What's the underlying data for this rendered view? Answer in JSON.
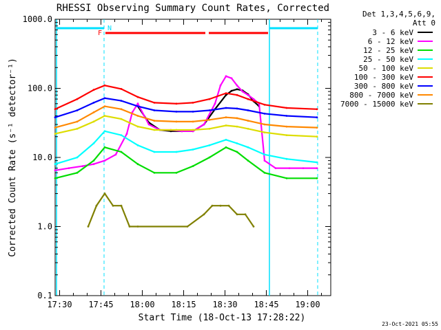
{
  "chart_data": {
    "type": "line",
    "title": "RHESSI Observing Summary Count Rates, Corrected",
    "xlabel": "Start Time (18-Oct-13 17:28:22)",
    "ylabel": "Corrected Count Rate (s⁻¹ detector⁻¹)",
    "y_scale": "log",
    "ylim": [
      0.1,
      1000
    ],
    "y_ticks": [
      "0.1",
      "1.0",
      "10.0",
      "100.0",
      "1000.0"
    ],
    "x_ticks": [
      "17:30",
      "17:45",
      "18:00",
      "18:15",
      "18:30",
      "18:45",
      "19:00"
    ],
    "x_tick_minutes": [
      1.63,
      16.63,
      31.63,
      46.63,
      61.63,
      76.63,
      91.63
    ],
    "xlim_minutes": [
      0,
      100
    ],
    "legend_header": [
      "Det 1,3,4,5,6,9,",
      "Att 0"
    ],
    "legend_position": "right",
    "annotations": {
      "fast_rate_marker": "F",
      "night_marker": "N",
      "timestamp": "23-Oct-2021 05:55"
    },
    "series": [
      {
        "name": "3 - 6 keV",
        "color": "#000000",
        "x": [
          30,
          34,
          38,
          42,
          46,
          50,
          54,
          58,
          62,
          64,
          66,
          68,
          70,
          72,
          74
        ],
        "y": [
          55,
          32,
          25,
          24,
          24,
          24,
          30,
          50,
          80,
          92,
          97,
          93,
          82,
          65,
          55
        ]
      },
      {
        "name": "6 - 12 keV",
        "color": "#ff00ff",
        "x": [
          0,
          5,
          10,
          14,
          18,
          22,
          26,
          28,
          30,
          34,
          38,
          42,
          46,
          50,
          54,
          58,
          60,
          62,
          64,
          66,
          68,
          70,
          72,
          74,
          76,
          80,
          85,
          90,
          95
        ],
        "y": [
          6.5,
          7,
          7.5,
          8,
          9,
          11,
          22,
          45,
          60,
          30,
          25,
          25,
          24,
          24,
          30,
          60,
          110,
          150,
          140,
          110,
          90,
          80,
          70,
          60,
          9,
          7,
          7,
          7,
          7
        ]
      },
      {
        "name": "12 - 25 keV",
        "color": "#00dd00",
        "x": [
          0,
          8,
          14,
          18,
          24,
          30,
          36,
          44,
          50,
          56,
          62,
          66,
          70,
          76,
          84,
          95
        ],
        "y": [
          5,
          6,
          9,
          14,
          12,
          8,
          6,
          6,
          7.5,
          10,
          14,
          12,
          9,
          6,
          5,
          5
        ]
      },
      {
        "name": "25 - 50 keV",
        "color": "#00ffff",
        "x": [
          0,
          8,
          14,
          18,
          24,
          30,
          36,
          44,
          50,
          56,
          62,
          66,
          70,
          76,
          84,
          95
        ],
        "y": [
          8,
          10,
          16,
          24,
          21,
          15,
          12,
          12,
          13,
          15,
          18,
          16,
          14,
          11,
          9.5,
          8.5
        ]
      },
      {
        "name": "50 - 100 keV",
        "color": "#dddd00",
        "x": [
          0,
          8,
          14,
          18,
          24,
          30,
          36,
          44,
          50,
          56,
          62,
          66,
          70,
          76,
          84,
          95
        ],
        "y": [
          22,
          26,
          33,
          40,
          36,
          28,
          25,
          25,
          25,
          26,
          29,
          28,
          26,
          23,
          21,
          20
        ]
      },
      {
        "name": "100 - 300 keV",
        "color": "#ff0000",
        "x": [
          0,
          8,
          14,
          18,
          24,
          30,
          36,
          44,
          50,
          56,
          62,
          66,
          70,
          76,
          84,
          95
        ],
        "y": [
          50,
          70,
          95,
          110,
          98,
          75,
          62,
          60,
          62,
          70,
          85,
          80,
          70,
          58,
          52,
          50
        ]
      },
      {
        "name": "300 - 800 keV",
        "color": "#0000ff",
        "x": [
          0,
          8,
          14,
          18,
          24,
          30,
          36,
          44,
          50,
          56,
          62,
          66,
          70,
          76,
          84,
          95
        ],
        "y": [
          38,
          48,
          62,
          72,
          66,
          55,
          48,
          46,
          46,
          48,
          52,
          51,
          48,
          43,
          40,
          38
        ]
      },
      {
        "name": "800 - 7000 keV",
        "color": "#ff8800",
        "x": [
          0,
          8,
          14,
          18,
          24,
          30,
          36,
          44,
          50,
          56,
          62,
          66,
          70,
          76,
          84,
          95
        ],
        "y": [
          27,
          33,
          45,
          55,
          50,
          40,
          34,
          33,
          33,
          35,
          38,
          37,
          34,
          30,
          28,
          27
        ]
      },
      {
        "name": "7000 - 15000 keV",
        "color": "#808000",
        "x": [
          12,
          15,
          18,
          21,
          24,
          27,
          30,
          48,
          54,
          57,
          60,
          63,
          66,
          69,
          72
        ],
        "y": [
          1,
          2,
          3,
          2,
          2,
          1,
          1,
          1,
          1.5,
          2,
          2,
          2,
          1.5,
          1.5,
          1
        ]
      }
    ]
  }
}
